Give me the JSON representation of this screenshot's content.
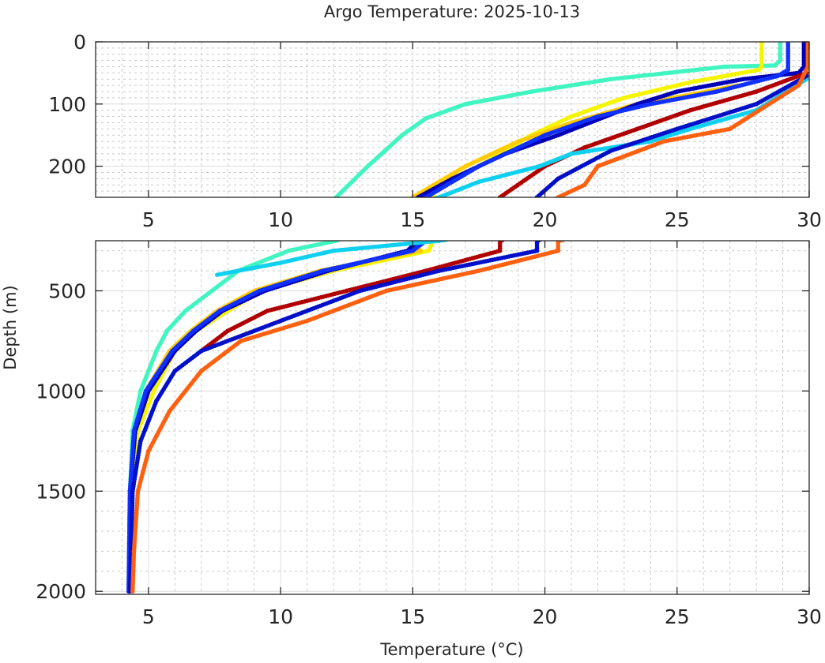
{
  "chart_data": {
    "type": "scatter",
    "title": "Argo Temperature: 2025-10-13",
    "xlabel": "Temperature (°C)",
    "ylabel": "Depth (m)",
    "grid": true,
    "minor_grid": true,
    "legend": "none",
    "panels": [
      {
        "name": "upper",
        "xlim": [
          3,
          30
        ],
        "ylim": [
          0,
          250
        ],
        "y_reversed": true,
        "xticks": [
          5,
          10,
          15,
          20,
          25,
          30
        ],
        "yticks": [
          0,
          100,
          200
        ],
        "xtick_labels": [
          "5",
          "10",
          "15",
          "20",
          "25",
          "30"
        ],
        "ytick_labels": [
          "0",
          "100",
          "200"
        ]
      },
      {
        "name": "lower",
        "xlim": [
          3,
          30
        ],
        "ylim": [
          250,
          2015
        ],
        "y_reversed": true,
        "xticks": [
          5,
          10,
          15,
          20,
          25,
          30
        ],
        "yticks": [
          500,
          1000,
          1500,
          2000
        ],
        "xtick_labels": [
          "5",
          "10",
          "15",
          "20",
          "25",
          "30"
        ],
        "ytick_labels": [
          "500",
          "1000",
          "1500",
          "2000"
        ]
      }
    ],
    "series": [
      {
        "name": "float-aquamarine",
        "color": "#40f5c0",
        "temp": [
          28.9,
          28.9,
          28.7,
          26.8,
          22.5,
          19.5,
          17.0,
          15.5,
          14.6,
          13.3,
          12.1,
          10.3,
          8.4,
          7.4,
          6.4,
          5.7,
          5.3,
          4.7,
          4.4,
          4.3,
          4.25
        ],
        "depth": [
          0,
          30,
          38,
          40,
          60,
          80,
          100,
          123,
          150,
          200,
          250,
          300,
          400,
          500,
          600,
          700,
          800,
          1000,
          1200,
          1500,
          2000
        ]
      },
      {
        "name": "float-yellow",
        "color": "#f5f500",
        "temp": [
          28.2,
          28.2,
          28.1,
          25.5,
          23.0,
          21.0,
          19.5,
          17.5,
          15.8,
          15.6,
          12.0,
          9.3,
          8.0,
          6.8,
          6.0,
          5.2,
          4.6,
          4.35,
          4.3
        ],
        "depth": [
          0,
          40,
          45,
          65,
          90,
          120,
          150,
          200,
          240,
          300,
          400,
          500,
          600,
          700,
          800,
          1000,
          1200,
          1500,
          2000
        ]
      },
      {
        "name": "float-gold",
        "color": "#ffcc00",
        "temp": [
          27.3,
          25.5,
          23.5,
          21.0,
          19.0,
          17.0,
          15.0,
          15.3,
          11.5,
          9.0,
          7.6,
          6.6,
          5.8,
          4.9,
          4.5,
          4.3,
          4.25
        ],
        "depth": [
          70,
          85,
          100,
          130,
          160,
          200,
          250,
          300,
          400,
          500,
          600,
          700,
          800,
          1000,
          1200,
          1500,
          2000
        ]
      },
      {
        "name": "float-navy",
        "color": "#0000b8",
        "temp": [
          29.8,
          29.8,
          29.6,
          27.5,
          25.0,
          23.5,
          20.5,
          18.5,
          16.5,
          15.2,
          14.8,
          11.8,
          9.4,
          7.8,
          6.8,
          6.0,
          5.0,
          4.5,
          4.3,
          4.25
        ],
        "depth": [
          0,
          40,
          50,
          60,
          80,
          100,
          150,
          180,
          220,
          250,
          300,
          400,
          500,
          600,
          700,
          800,
          1000,
          1200,
          1500,
          2000
        ]
      },
      {
        "name": "float-blue",
        "color": "#1030ff",
        "temp": [
          29.2,
          29.2,
          28.8,
          26.5,
          24.0,
          22.0,
          20.0,
          17.5,
          15.5,
          15.0,
          11.6,
          9.2,
          7.7,
          6.7,
          5.9,
          4.9,
          4.45,
          4.3,
          4.25
        ],
        "depth": [
          0,
          45,
          55,
          80,
          100,
          120,
          150,
          200,
          250,
          300,
          400,
          500,
          600,
          700,
          800,
          1000,
          1200,
          1500,
          2000
        ]
      },
      {
        "name": "float-darkred",
        "color": "#b00000",
        "temp": [
          29.9,
          28.0,
          25.5,
          23.5,
          21.5,
          20.0,
          18.3,
          18.3,
          15.5,
          12.5,
          9.5,
          8.0,
          7.0
        ],
        "depth": [
          50,
          80,
          110,
          140,
          170,
          200,
          250,
          300,
          400,
          500,
          600,
          700,
          800
        ]
      },
      {
        "name": "float-cyan",
        "color": "#10d0f0",
        "temp": [
          29.9,
          28.0,
          25.5,
          24.0,
          21.0,
          19.8,
          17.5,
          16.0,
          12.0,
          10.0,
          7.6
        ],
        "depth": [
          60,
          110,
          140,
          160,
          180,
          200,
          225,
          250,
          300,
          360,
          420
        ]
      },
      {
        "name": "float-navy-2",
        "color": "#0010c8",
        "temp": [
          29.9,
          28.0,
          25.0,
          22.5,
          20.5,
          19.7,
          19.7,
          16.0,
          13.0,
          10.0,
          7.0,
          6.0,
          5.3,
          4.7,
          4.4,
          4.3
        ],
        "depth": [
          55,
          100,
          140,
          175,
          220,
          250,
          300,
          400,
          500,
          650,
          800,
          900,
          1050,
          1250,
          1500,
          2000
        ]
      },
      {
        "name": "float-orange",
        "color": "#ff6010",
        "temp": [
          29.95,
          29.95,
          29.6,
          27.0,
          24.5,
          22.0,
          21.5,
          20.5,
          20.5,
          17.5,
          14.0,
          11.0,
          8.5,
          7.0,
          5.8,
          5.0,
          4.6,
          4.45,
          4.4
        ],
        "depth": [
          0,
          40,
          70,
          140,
          160,
          200,
          230,
          250,
          300,
          400,
          500,
          650,
          750,
          900,
          1100,
          1300,
          1500,
          1800,
          2000
        ]
      }
    ]
  }
}
